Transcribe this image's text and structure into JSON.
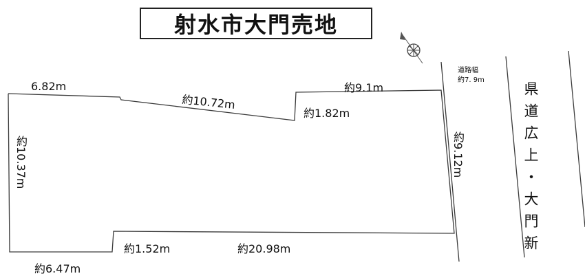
{
  "title": "射水市大門売地",
  "dimensions": {
    "top_left": "6.82m",
    "top_slant": "約10.72m",
    "top_step": "約1.82m",
    "top_right": "約9.1m",
    "left_side": "約10.37m",
    "right_side": "約9.12m",
    "bottom_step": "約1.52m",
    "bottom_long": "約20.98m",
    "bottom_left": "約6.47m"
  },
  "road": {
    "width_label": "道路幅",
    "width_value": "約7. 9m",
    "name": "県道広上・大門新"
  }
}
